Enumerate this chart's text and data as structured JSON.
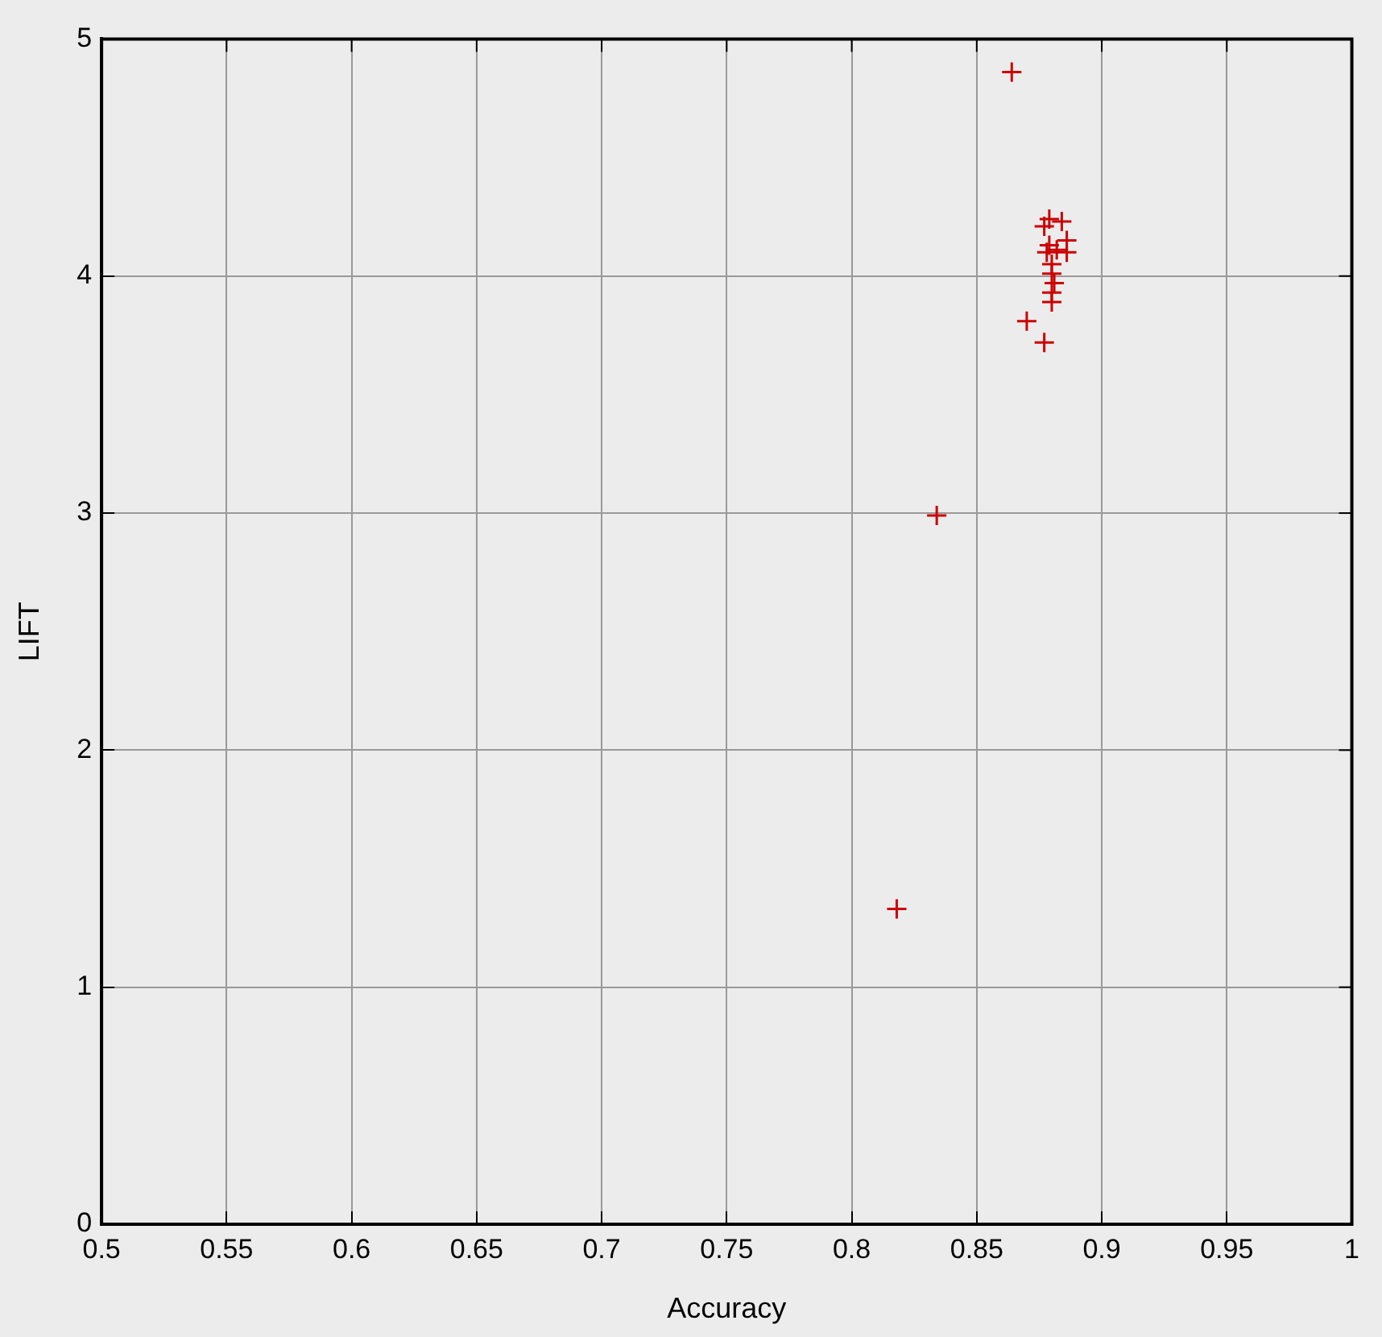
{
  "chart_data": {
    "type": "scatter",
    "xlabel": "Accuracy",
    "ylabel": "LIFT",
    "x": [
      0.864,
      0.879,
      0.884,
      0.877,
      0.886,
      0.879,
      0.882,
      0.886,
      0.878,
      0.88,
      0.88,
      0.881,
      0.88,
      0.88,
      0.87,
      0.877,
      0.834,
      0.818
    ],
    "series": [
      {
        "color": "#cc0000",
        "values": [
          4.86,
          4.24,
          4.23,
          4.21,
          4.15,
          4.13,
          4.11,
          4.1,
          4.1,
          4.05,
          4.01,
          3.97,
          3.93,
          3.89,
          3.81,
          3.72,
          2.99,
          1.33
        ]
      }
    ],
    "xlim": [
      0.5,
      1
    ],
    "xticks": [
      0.5,
      0.55,
      0.6,
      0.65,
      0.7,
      0.75,
      0.8,
      0.85,
      0.9,
      0.95,
      1
    ],
    "ylim": [
      0,
      5
    ],
    "yticks": [
      0,
      1,
      2,
      3,
      4,
      5
    ],
    "grid": true,
    "legend": false,
    "marker": "cross"
  }
}
